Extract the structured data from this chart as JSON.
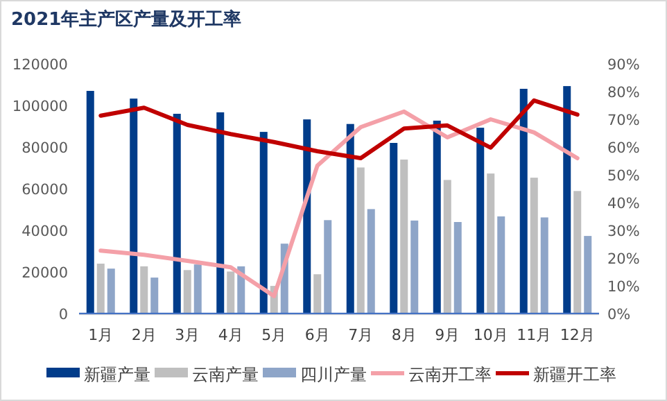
{
  "chart_data": {
    "type": "bar",
    "title": "2021年主产区产量及开工率",
    "categories": [
      "1月",
      "2月",
      "3月",
      "4月",
      "5月",
      "6月",
      "7月",
      "8月",
      "9月",
      "10月",
      "11月",
      "12月"
    ],
    "series": [
      {
        "name": "新疆产量",
        "color": "#003c8a",
        "values": [
          107000,
          103300,
          96000,
          96700,
          87300,
          93300,
          91100,
          82000,
          92700,
          89300,
          108000,
          109300
        ]
      },
      {
        "name": "云南产量",
        "color": "#bfbfbf",
        "values": [
          24000,
          22700,
          20900,
          20200,
          13300,
          18900,
          70200,
          74000,
          64200,
          67300,
          65300,
          58900
        ]
      },
      {
        "name": "四川产量",
        "color": "#8ea5c8",
        "values": [
          21600,
          17300,
          23600,
          22700,
          33600,
          44900,
          50200,
          44700,
          44000,
          46700,
          46200,
          37300
        ]
      },
      {
        "name": "云南开工率",
        "type": "line",
        "axis": "y2",
        "color": "#f4a0a8",
        "values": [
          22.7,
          21.2,
          19,
          16.7,
          6.3,
          53.3,
          67.2,
          72.8,
          63.5,
          70,
          65.3,
          56
        ]
      },
      {
        "name": "新疆开工率",
        "type": "line",
        "axis": "y2",
        "color": "#c00000",
        "values": [
          71.3,
          74.2,
          68,
          64.7,
          61.8,
          58.5,
          56,
          66.7,
          67.8,
          59.8,
          76.8,
          71.7
        ]
      }
    ],
    "ylim": [
      0,
      120000
    ],
    "yticks": [
      0,
      20000,
      40000,
      60000,
      80000,
      100000,
      120000
    ],
    "y2lim": [
      0,
      90
    ],
    "y2ticks": [
      {
        "value": 0,
        "label": "0%"
      },
      {
        "value": 10,
        "label": "10%"
      },
      {
        "value": 20,
        "label": "20%"
      },
      {
        "value": 30,
        "label": "30%"
      },
      {
        "value": 40,
        "label": "40%"
      },
      {
        "value": 50,
        "label": "50%"
      },
      {
        "value": 60,
        "label": "60%"
      },
      {
        "value": 70,
        "label": "70%"
      },
      {
        "value": 80,
        "label": "80%"
      },
      {
        "value": 90,
        "label": "90%"
      }
    ],
    "legend": "bottom",
    "grid": false,
    "marker": "none"
  }
}
